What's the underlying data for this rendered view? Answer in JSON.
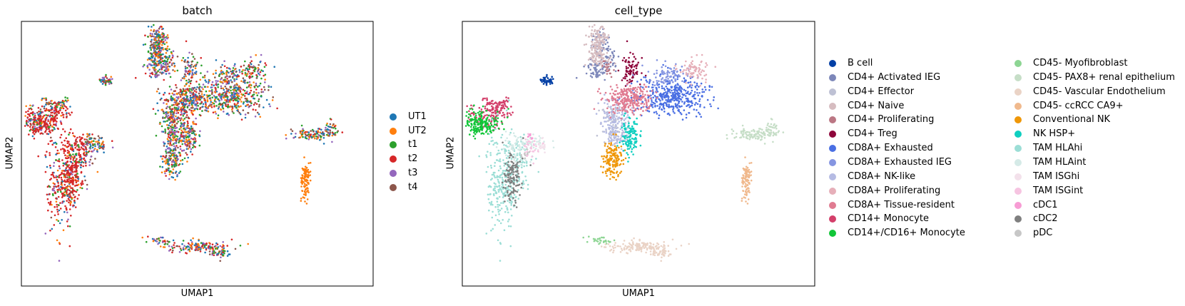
{
  "chart_data": [
    {
      "type": "scatter",
      "title": "batch",
      "xlabel": "UMAP1",
      "ylabel": "UMAP2",
      "xticks": "none",
      "yticks": "none",
      "grid": false,
      "legend_position": "right",
      "legend": [
        {
          "name": "UT1",
          "color": "#1f77b4"
        },
        {
          "name": "UT2",
          "color": "#ff7f0e"
        },
        {
          "name": "t1",
          "color": "#2ca02c"
        },
        {
          "name": "t2",
          "color": "#d62728"
        },
        {
          "name": "t3",
          "color": "#9467bd"
        },
        {
          "name": "t4",
          "color": "#8c564b"
        }
      ]
    },
    {
      "type": "scatter",
      "title": "cell_type",
      "xlabel": "UMAP1",
      "ylabel": "UMAP2",
      "xticks": "none",
      "yticks": "none",
      "grid": false,
      "legend_position": "right",
      "legend_columns": 2,
      "legend": [
        {
          "name": "B cell",
          "color": "#023fa5"
        },
        {
          "name": "CD4+ Activated IEG",
          "color": "#7d87b9"
        },
        {
          "name": "CD4+ Effector",
          "color": "#bec1d4"
        },
        {
          "name": "CD4+ Naive",
          "color": "#d6bcc0"
        },
        {
          "name": "CD4+ Proliferating",
          "color": "#bb7784"
        },
        {
          "name": "CD4+ Treg",
          "color": "#8e063b"
        },
        {
          "name": "CD8A+ Exhausted",
          "color": "#4a6fe3"
        },
        {
          "name": "CD8A+ Exhausted IEG",
          "color": "#8595e1"
        },
        {
          "name": "CD8A+ NK-like",
          "color": "#b5bbe3"
        },
        {
          "name": "CD8A+ Proliferating",
          "color": "#e6afb9"
        },
        {
          "name": "CD8A+ Tissue-resident",
          "color": "#e07b91"
        },
        {
          "name": "CD14+ Monocyte",
          "color": "#d33f6a"
        },
        {
          "name": "CD14+/CD16+ Monocyte",
          "color": "#11c638"
        },
        {
          "name": "CD45- Myofibroblast",
          "color": "#8dd593"
        },
        {
          "name": "CD45- PAX8+ renal epithelium",
          "color": "#c6dec7"
        },
        {
          "name": "CD45- Vascular Endothelium",
          "color": "#ead3c6"
        },
        {
          "name": "CD45- ccRCC CA9+",
          "color": "#f0b98d"
        },
        {
          "name": "Conventional NK",
          "color": "#ef9708"
        },
        {
          "name": "NK HSP+",
          "color": "#0fcfc0"
        },
        {
          "name": "TAM HLAhi",
          "color": "#9cded6"
        },
        {
          "name": "TAM HLAint",
          "color": "#d5eae7"
        },
        {
          "name": "TAM ISGhi",
          "color": "#f3e1eb"
        },
        {
          "name": "TAM ISGint",
          "color": "#f6c4e1"
        },
        {
          "name": "cDC1",
          "color": "#f79cd4"
        },
        {
          "name": "cDC2",
          "color": "#7f7f7f"
        },
        {
          "name": "pDC",
          "color": "#c7c7c7"
        }
      ]
    }
  ]
}
